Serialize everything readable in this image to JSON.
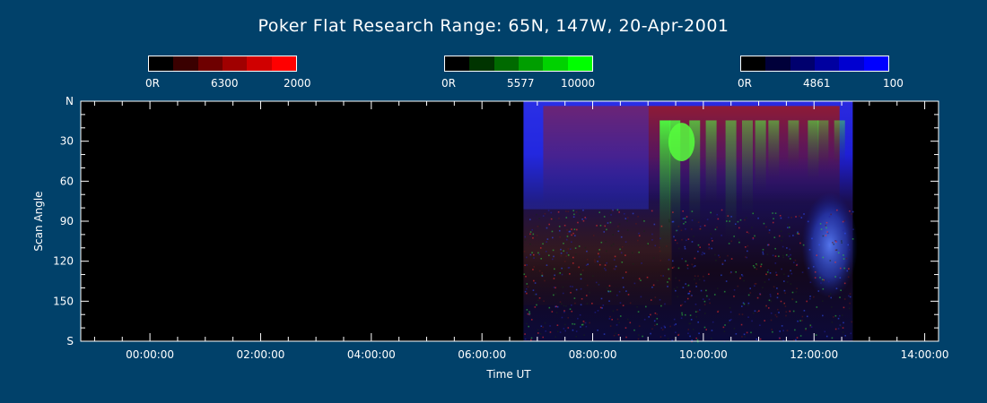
{
  "title": "Poker Flat Research Range: 65N, 147W, 20-Apr-2001",
  "colorbars": [
    {
      "wavelength": "6300",
      "min_label": "0R",
      "max_label": "2000",
      "colors": [
        "#000000",
        "#3a0000",
        "#6e0000",
        "#a00000",
        "#d00000",
        "#ff0000"
      ]
    },
    {
      "wavelength": "5577",
      "min_label": "0R",
      "max_label": "10000",
      "colors": [
        "#000000",
        "#003400",
        "#006a00",
        "#009e00",
        "#00d200",
        "#00ff00"
      ]
    },
    {
      "wavelength": "4861",
      "min_label": "0R",
      "max_label": "100",
      "colors": [
        "#000000",
        "#00003a",
        "#00006e",
        "#0000a0",
        "#0000d0",
        "#0000ff"
      ]
    }
  ],
  "chart_data": {
    "type": "heatmap",
    "title": "Poker Flat Research Range: 65N, 147W, 20-Apr-2001",
    "xlabel": "Time UT",
    "ylabel": "Scan Angle",
    "x_tick_labels": [
      "00:00:00",
      "02:00:00",
      "04:00:00",
      "06:00:00",
      "08:00:00",
      "10:00:00",
      "12:00:00",
      "14:00:00"
    ],
    "y_tick_labels": [
      "N",
      "30",
      "60",
      "90",
      "120",
      "150",
      "S"
    ],
    "xlim_hours": [
      -1.25,
      14.25
    ],
    "ylim_deg": [
      0,
      180
    ],
    "data_coverage_hours": [
      6.75,
      12.7
    ],
    "channels": [
      {
        "wavelength": "6300",
        "color": "#ff0000",
        "range": [
          0,
          2000
        ],
        "unit": "R"
      },
      {
        "wavelength": "5577",
        "color": "#00ff00",
        "range": [
          0,
          10000
        ],
        "unit": "R"
      },
      {
        "wavelength": "4861",
        "color": "#0000ff",
        "range": [
          0,
          100
        ],
        "unit": "R"
      }
    ]
  }
}
